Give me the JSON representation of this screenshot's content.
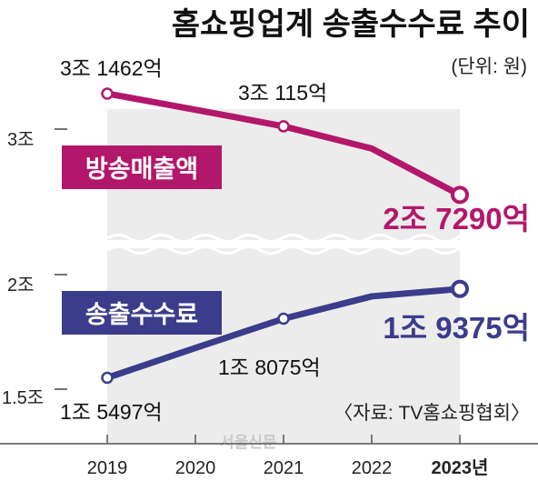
{
  "title": "홈쇼핑업계 송출수수료 추이",
  "unit": "(단위: 원)",
  "source": "〈자료: TV홈쇼핑협회〉",
  "watermark": "서울신문",
  "colors": {
    "broadcast": "#b3176b",
    "fee": "#3b3c8c",
    "band": "#ececec"
  },
  "chart_data": {
    "type": "line",
    "x": [
      "2019",
      "2020",
      "2021",
      "2022",
      "2023년"
    ],
    "ytick_labels": [
      {
        "label": "3조",
        "value": 30000
      },
      {
        "label": "2조",
        "value": 20000
      },
      {
        "label": "1.5조",
        "value": 15000
      }
    ],
    "broken_axis": true,
    "grid": false,
    "series": [
      {
        "name": "방송매출액",
        "values": [
          31462,
          30800,
          30115,
          29200,
          27290
        ],
        "labeled": [
          {
            "index": 0,
            "text": "3조 1462억"
          },
          {
            "index": 2,
            "text": "3조 115억"
          },
          {
            "index": 4,
            "text": "2조 7290억",
            "highlight": true
          }
        ],
        "markers": [
          0,
          2,
          4
        ]
      },
      {
        "name": "송출수수료",
        "values": [
          15497,
          16800,
          18075,
          19050,
          19375
        ],
        "labeled": [
          {
            "index": 0,
            "text": "1조 5497억"
          },
          {
            "index": 2,
            "text": "1조 8075억"
          },
          {
            "index": 4,
            "text": "1조 9375억",
            "highlight": true
          }
        ],
        "markers": [
          0,
          2,
          4
        ]
      }
    ]
  }
}
